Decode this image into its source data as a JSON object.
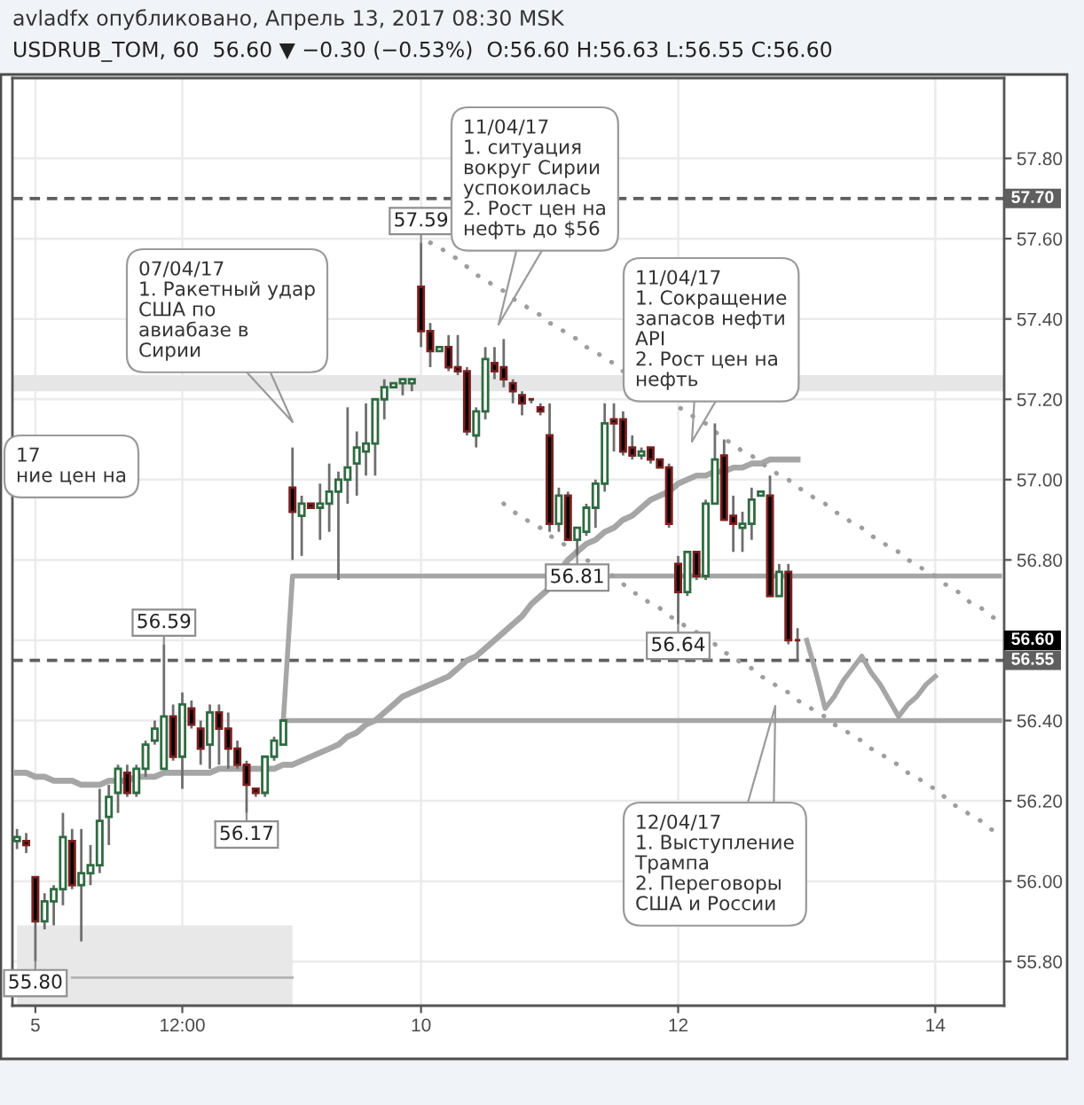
{
  "chart_data": {
    "type": "candlestick",
    "title": "avladfx опубликовано, Апрель 13, 2017 08:30 MSK",
    "subtitle": "USDRUB_TOM, 60  56.60 ▼ −0.30 (−0.53%)  O:56.60 H:56.63 L:56.55 C:56.60",
    "categories": [
      null,
      null,
      "5",
      null,
      null,
      null,
      null,
      null,
      null,
      null,
      null,
      null,
      null,
      null,
      null,
      null,
      null,
      null,
      "12:00",
      null,
      null,
      null,
      null,
      null,
      null,
      null,
      null,
      null,
      null,
      null,
      null,
      null,
      null,
      null,
      null,
      null,
      null,
      null,
      null,
      null,
      null,
      null,
      null,
      null,
      "10",
      null,
      null,
      null,
      null,
      null,
      null,
      null,
      null,
      null,
      null,
      null,
      null,
      null,
      null,
      null,
      null,
      null,
      null,
      null,
      null,
      null,
      null,
      null,
      null,
      null,
      null,
      null,
      "12",
      null,
      null,
      null,
      null,
      null,
      null,
      null,
      null,
      null,
      null,
      null,
      null,
      null,
      null,
      null,
      null,
      null,
      null,
      null,
      null,
      null,
      null,
      null,
      null,
      null,
      null,
      null,
      "14",
      null,
      null,
      null,
      null,
      null,
      null,
      null
    ],
    "ylim": [
      55.69,
      58.0
    ],
    "yticks": [
      {
        "value": 55.8,
        "label": "55.80"
      },
      {
        "value": 56.0,
        "label": "56.00"
      },
      {
        "value": 56.2,
        "label": "56.20"
      },
      {
        "value": 56.4,
        "label": "56.40"
      },
      {
        "value": 56.6,
        "label": null
      },
      {
        "value": 56.8,
        "label": "56.80"
      },
      {
        "value": 57.0,
        "label": "57.00"
      },
      {
        "value": 57.2,
        "label": "57.20"
      },
      {
        "value": 57.4,
        "label": "57.40"
      },
      {
        "value": 57.6,
        "label": "57.60"
      },
      {
        "value": 57.8,
        "label": "57.80"
      }
    ],
    "grid": true,
    "color": "#6e6e6e",
    "ohlc": [
      [
        56.1,
        56.13,
        56.08,
        56.11
      ],
      [
        56.1,
        56.12,
        56.07,
        56.09
      ],
      [
        56.01,
        56.01,
        55.8,
        55.9
      ],
      [
        55.9,
        55.97,
        55.88,
        55.95
      ],
      [
        55.95,
        55.99,
        55.89,
        55.98
      ],
      [
        55.98,
        56.17,
        55.94,
        56.11
      ],
      [
        56.1,
        56.13,
        55.98,
        55.99
      ],
      [
        55.99,
        56.13,
        55.85,
        56.02
      ],
      [
        56.02,
        56.09,
        55.99,
        56.04
      ],
      [
        56.04,
        56.23,
        56.02,
        56.15
      ],
      [
        56.16,
        56.24,
        56.09,
        56.21
      ],
      [
        56.22,
        56.29,
        56.17,
        56.28
      ],
      [
        56.27,
        56.29,
        56.21,
        56.22
      ],
      [
        56.22,
        56.29,
        56.21,
        56.28
      ],
      [
        56.28,
        56.35,
        56.26,
        56.34
      ],
      [
        56.35,
        56.4,
        56.34,
        56.38
      ],
      [
        56.28,
        56.59,
        56.28,
        56.41
      ],
      [
        56.41,
        56.44,
        56.3,
        56.31
      ],
      [
        56.31,
        56.47,
        56.23,
        56.44
      ],
      [
        56.43,
        56.45,
        56.38,
        56.39
      ],
      [
        56.38,
        56.4,
        56.29,
        56.33
      ],
      [
        56.34,
        56.44,
        56.28,
        56.42
      ],
      [
        56.42,
        56.44,
        56.29,
        56.38
      ],
      [
        56.38,
        56.42,
        56.28,
        56.33
      ],
      [
        56.33,
        56.35,
        56.28,
        56.29
      ],
      [
        56.29,
        56.3,
        56.17,
        56.24
      ],
      [
        56.23,
        56.23,
        56.21,
        56.22
      ],
      [
        56.22,
        56.31,
        56.21,
        56.31
      ],
      [
        56.31,
        56.36,
        56.3,
        56.35
      ],
      [
        56.34,
        56.4,
        56.34,
        56.4
      ],
      [
        56.98,
        57.08,
        56.8,
        56.92
      ],
      [
        56.91,
        56.96,
        56.81,
        56.94
      ],
      [
        56.94,
        56.94,
        56.93,
        56.93
      ],
      [
        56.93,
        56.99,
        56.85,
        56.94
      ],
      [
        56.94,
        57.04,
        56.87,
        56.97
      ],
      [
        56.97,
        57.02,
        56.75,
        57.0
      ],
      [
        57.0,
        57.18,
        56.94,
        57.03
      ],
      [
        57.04,
        57.12,
        56.96,
        57.08
      ],
      [
        57.07,
        57.19,
        57.01,
        57.09
      ],
      [
        57.09,
        57.2,
        57.01,
        57.2
      ],
      [
        57.2,
        57.25,
        57.15,
        57.23
      ],
      [
        57.23,
        57.24,
        57.23,
        57.24
      ],
      [
        57.24,
        57.25,
        57.21,
        57.25
      ],
      [
        57.24,
        57.25,
        57.22,
        57.25
      ],
      [
        57.48,
        57.59,
        57.33,
        57.37
      ],
      [
        57.37,
        57.39,
        57.28,
        57.32
      ],
      [
        57.32,
        57.33,
        57.32,
        57.33
      ],
      [
        57.33,
        57.36,
        57.27,
        57.28
      ],
      [
        57.28,
        57.36,
        57.26,
        57.27
      ],
      [
        57.27,
        57.28,
        57.11,
        57.12
      ],
      [
        57.11,
        57.18,
        57.08,
        57.17
      ],
      [
        57.17,
        57.33,
        57.15,
        57.3
      ],
      [
        57.29,
        57.33,
        57.25,
        57.27
      ],
      [
        57.28,
        57.35,
        57.23,
        57.25
      ],
      [
        57.24,
        57.25,
        57.19,
        57.22
      ],
      [
        57.21,
        57.22,
        57.16,
        57.19
      ],
      [
        57.2,
        57.2,
        57.19,
        57.2
      ],
      [
        57.18,
        57.19,
        57.16,
        57.17
      ],
      [
        57.11,
        57.19,
        56.87,
        56.89
      ],
      [
        56.89,
        56.98,
        56.87,
        56.96
      ],
      [
        56.96,
        56.97,
        56.85,
        56.85
      ],
      [
        56.85,
        56.88,
        56.81,
        56.88
      ],
      [
        56.87,
        56.94,
        56.86,
        56.93
      ],
      [
        56.93,
        57.0,
        56.88,
        56.99
      ],
      [
        56.99,
        57.19,
        56.97,
        57.14
      ],
      [
        57.15,
        57.19,
        57.07,
        57.14
      ],
      [
        57.15,
        57.17,
        57.06,
        57.07
      ],
      [
        57.08,
        57.11,
        57.05,
        57.06
      ],
      [
        57.06,
        57.08,
        57.05,
        57.07
      ],
      [
        57.08,
        57.08,
        57.04,
        57.05
      ],
      [
        57.05,
        57.05,
        57.03,
        57.03
      ],
      [
        57.03,
        57.04,
        56.88,
        56.89
      ],
      [
        56.79,
        56.81,
        56.64,
        56.72
      ],
      [
        56.72,
        56.82,
        56.71,
        56.82
      ],
      [
        56.82,
        56.82,
        56.75,
        56.76
      ],
      [
        56.76,
        56.95,
        56.75,
        56.94
      ],
      [
        56.94,
        57.14,
        56.94,
        57.05
      ],
      [
        57.06,
        57.1,
        56.9,
        56.9
      ],
      [
        56.91,
        56.96,
        56.82,
        56.89
      ],
      [
        56.88,
        56.92,
        56.82,
        56.89
      ],
      [
        56.89,
        56.98,
        56.85,
        56.95
      ],
      [
        56.96,
        56.97,
        56.96,
        56.97
      ],
      [
        56.96,
        57.01,
        56.71,
        56.71
      ],
      [
        56.71,
        56.79,
        56.71,
        56.77
      ],
      [
        56.77,
        56.79,
        56.59,
        56.6
      ],
      [
        56.6,
        56.63,
        56.55,
        56.6
      ],
      null,
      null,
      null,
      null,
      null,
      null,
      null,
      null,
      null,
      null,
      null,
      null,
      null,
      null,
      null,
      null,
      null,
      null,
      null,
      null,
      null,
      null
    ],
    "colors": [
      "#2e6b40",
      "#7a1f1f",
      "#7a1f1f",
      "#2e6b40",
      "#2e6b40",
      "#2e6b40",
      "#7a1f1f",
      "#2e6b40",
      "#2e6b40",
      "#2e6b40",
      "#2e6b40",
      "#2e6b40",
      "#7a1f1f",
      "#2e6b40",
      "#2e6b40",
      "#2e6b40",
      "#2e6b40",
      "#7a1f1f",
      "#2e6b40",
      "#7a1f1f",
      "#7a1f1f",
      "#2e6b40",
      "#7a1f1f",
      "#7a1f1f",
      "#7a1f1f",
      "#7a1f1f",
      "#7a1f1f",
      "#2e6b40",
      "#2e6b40",
      "#2e6b40",
      "#7a1f1f",
      "#2e6b40",
      "#7a1f1f",
      "#2e6b40",
      "#2e6b40",
      "#2e6b40",
      "#2e6b40",
      "#2e6b40",
      "#2e6b40",
      "#2e6b40",
      "#2e6b40",
      "#2e6b40",
      "#2e6b40",
      "#2e6b40",
      "#7a1f1f",
      "#7a1f1f",
      "#2e6b40",
      "#7a1f1f",
      "#7a1f1f",
      "#7a1f1f",
      "#2e6b40",
      "#2e6b40",
      "#7a1f1f",
      "#7a1f1f",
      "#7a1f1f",
      "#7a1f1f",
      "#7a1f1f",
      "#7a1f1f",
      "#7a1f1f",
      "#2e6b40",
      "#7a1f1f",
      "#2e6b40",
      "#2e6b40",
      "#2e6b40",
      "#2e6b40",
      "#7a1f1f",
      "#7a1f1f",
      "#7a1f1f",
      "#2e6b40",
      "#7a1f1f",
      "#7a1f1f",
      "#7a1f1f",
      "#7a1f1f",
      "#2e6b40",
      "#7a1f1f",
      "#2e6b40",
      "#2e6b40",
      "#7a1f1f",
      "#7a1f1f",
      "#2e6b40",
      "#2e6b40",
      "#2e6b40",
      "#7a1f1f",
      "#2e6b40",
      "#7a1f1f",
      "#7a1f1f",
      null,
      null,
      null,
      null,
      null,
      null,
      null,
      null,
      null,
      null,
      null,
      null,
      null,
      null,
      null,
      null,
      null,
      null,
      null,
      null,
      null,
      null
    ],
    "value_labels": [
      null,
      null,
      "55.80",
      null,
      null,
      null,
      null,
      null,
      null,
      null,
      null,
      null,
      null,
      null,
      null,
      null,
      "56.59",
      null,
      null,
      null,
      null,
      null,
      null,
      null,
      null,
      "56.17",
      null,
      null,
      null,
      null,
      null,
      null,
      null,
      null,
      null,
      null,
      null,
      null,
      null,
      null,
      null,
      null,
      null,
      null,
      "57.59",
      null,
      null,
      null,
      null,
      null,
      null,
      null,
      null,
      null,
      null,
      null,
      null,
      null,
      null,
      null,
      null,
      "56.81",
      null,
      null,
      null,
      null,
      null,
      null,
      null,
      null,
      null,
      null,
      "56.64",
      null,
      null,
      null,
      null,
      null,
      null,
      null,
      null,
      null,
      null,
      null,
      null,
      null,
      null,
      null,
      null,
      null,
      null,
      null,
      null,
      null,
      null,
      null,
      null,
      null,
      null,
      null,
      null,
      null,
      null,
      null,
      null,
      null,
      null,
      null
    ],
    "series": [
      {
        "type": "line",
        "color": "#a6a6a6",
        "values": [
          56.27,
          56.27,
          56.26,
          56.26,
          56.25,
          56.25,
          56.25,
          56.24,
          56.24,
          56.24,
          56.25,
          56.25,
          56.25,
          56.26,
          56.26,
          56.26,
          56.27,
          56.27,
          56.27,
          56.27,
          56.27,
          56.27,
          56.28,
          56.28,
          56.28,
          56.28,
          56.28,
          56.28,
          56.28,
          56.29,
          56.29,
          56.3,
          56.31,
          56.32,
          56.33,
          56.34,
          56.36,
          56.37,
          56.39,
          56.4,
          56.42,
          56.44,
          56.46,
          56.47,
          56.48,
          56.49,
          56.5,
          56.51,
          56.53,
          56.55,
          56.56,
          56.58,
          56.6,
          56.62,
          56.64,
          56.66,
          56.69,
          56.71,
          56.73,
          56.77,
          56.8,
          56.82,
          56.84,
          56.85,
          56.87,
          56.88,
          56.9,
          56.91,
          56.93,
          56.95,
          56.96,
          56.97,
          56.99,
          57.0,
          57.01,
          57.01,
          57.02,
          57.02,
          57.03,
          57.03,
          57.04,
          57.04,
          57.05,
          57.05,
          57.05,
          57.05,
          null,
          null,
          null,
          null,
          null,
          null,
          null,
          null,
          null,
          null,
          null,
          null,
          null,
          null,
          null,
          null,
          null,
          null,
          null,
          null,
          null,
          null
        ]
      },
      {
        "type": "line",
        "color": "#a6a6a6",
        "values": [
          null,
          null,
          null,
          null,
          null,
          null,
          null,
          null,
          null,
          null,
          null,
          null,
          null,
          null,
          null,
          null,
          null,
          null,
          null,
          null,
          null,
          null,
          null,
          null,
          null,
          null,
          null,
          null,
          null,
          56.4,
          56.76,
          56.76,
          56.76,
          56.76,
          56.76,
          56.76,
          56.76,
          56.76,
          56.76,
          56.76,
          56.76,
          56.76,
          56.76,
          56.76,
          56.76,
          56.76,
          56.76,
          56.76,
          56.76,
          56.76,
          56.76,
          56.76,
          56.76,
          56.76,
          56.76,
          56.76,
          56.76,
          56.76,
          56.76,
          56.76,
          56.76,
          56.76,
          56.76,
          56.76,
          56.76,
          56.76,
          56.76,
          56.76,
          56.76,
          56.76,
          56.76,
          56.76,
          56.76,
          56.76,
          56.76,
          56.76,
          56.76,
          56.76,
          56.76,
          56.76,
          56.76,
          56.76,
          56.76,
          56.76,
          56.76,
          56.76,
          56.76,
          56.76,
          56.76,
          56.76,
          56.76,
          56.76,
          56.76,
          56.76,
          56.76,
          56.76,
          56.76,
          56.76,
          56.76,
          56.76,
          56.76,
          56.76,
          56.76,
          56.76,
          56.76,
          56.76,
          56.76,
          56.76
        ]
      },
      {
        "type": "line",
        "color": "#a6a6a6",
        "values": [
          null,
          null,
          null,
          null,
          null,
          null,
          null,
          null,
          null,
          null,
          null,
          null,
          null,
          null,
          null,
          null,
          null,
          null,
          null,
          null,
          null,
          null,
          null,
          null,
          null,
          null,
          null,
          null,
          null,
          56.4,
          56.4,
          56.4,
          56.4,
          56.4,
          56.4,
          56.4,
          56.4,
          56.4,
          56.4,
          56.4,
          56.4,
          56.4,
          56.4,
          56.4,
          56.4,
          56.4,
          56.4,
          56.4,
          56.4,
          56.4,
          56.4,
          56.4,
          56.4,
          56.4,
          56.4,
          56.4,
          56.4,
          56.4,
          56.4,
          56.4,
          56.4,
          56.4,
          56.4,
          56.4,
          56.4,
          56.4,
          56.4,
          56.4,
          56.4,
          56.4,
          56.4,
          56.4,
          56.4,
          56.4,
          56.4,
          56.4,
          56.4,
          56.4,
          56.4,
          56.4,
          56.4,
          56.4,
          56.4,
          56.4,
          56.4,
          56.4,
          56.4,
          56.4,
          56.4,
          56.4,
          56.4,
          56.4,
          56.4,
          56.4,
          56.4,
          56.4,
          56.4,
          56.4,
          56.4,
          56.4,
          56.4,
          56.4,
          56.4,
          56.4,
          56.4,
          56.4,
          56.4,
          56.4
        ]
      },
      {
        "type": "line",
        "line_style": "dotted",
        "color": "#9e9e9e",
        "values": [
          null,
          null,
          null,
          null,
          null,
          null,
          null,
          null,
          null,
          null,
          null,
          null,
          null,
          null,
          null,
          null,
          null,
          null,
          null,
          null,
          null,
          null,
          null,
          null,
          null,
          null,
          null,
          null,
          null,
          null,
          null,
          null,
          null,
          null,
          null,
          null,
          null,
          null,
          null,
          null,
          null,
          null,
          null,
          null,
          null,
          57.59,
          57.58,
          57.56,
          57.55,
          57.53,
          57.51,
          57.5,
          57.48,
          57.47,
          57.45,
          57.44,
          57.42,
          57.41,
          57.39,
          57.38,
          57.36,
          57.35,
          57.33,
          57.32,
          57.3,
          57.29,
          57.27,
          null,
          null,
          null,
          null,
          57.2,
          57.18,
          57.17,
          57.15,
          57.14,
          57.12,
          57.1,
          57.09,
          57.07,
          57.06,
          57.04,
          57.03,
          57.01,
          57.0,
          56.98,
          56.97,
          56.95,
          56.94,
          56.92,
          56.91,
          56.89,
          56.88,
          56.86,
          56.85,
          56.83,
          56.82,
          56.8,
          56.79,
          56.77,
          56.76,
          56.74,
          56.73,
          56.71,
          56.69,
          56.68,
          56.66,
          56.65
        ]
      },
      {
        "type": "line",
        "line_style": "dotted",
        "color": "#9e9e9e",
        "values": [
          null,
          null,
          null,
          null,
          null,
          null,
          null,
          null,
          null,
          null,
          null,
          null,
          null,
          null,
          null,
          null,
          null,
          null,
          null,
          null,
          null,
          null,
          null,
          null,
          null,
          null,
          null,
          null,
          null,
          null,
          null,
          null,
          null,
          null,
          null,
          null,
          null,
          null,
          null,
          null,
          null,
          null,
          null,
          null,
          null,
          null,
          null,
          null,
          null,
          null,
          null,
          null,
          null,
          56.94,
          56.92,
          56.91,
          56.89,
          56.88,
          56.86,
          56.85,
          56.83,
          56.82,
          56.8,
          56.79,
          56.77,
          56.76,
          56.74,
          56.72,
          56.71,
          56.69,
          56.68,
          56.66,
          56.65,
          56.63,
          56.62,
          null,
          56.59,
          56.57,
          56.56,
          56.54,
          56.53,
          56.51,
          56.5,
          56.48,
          56.47,
          56.45,
          56.44,
          56.42,
          56.41,
          56.39,
          56.38,
          56.36,
          56.35,
          56.33,
          56.32,
          56.3,
          56.29,
          56.27,
          56.26,
          56.24,
          56.23,
          56.21,
          56.19,
          56.18,
          56.16,
          56.15,
          56.13,
          56.12
        ]
      },
      {
        "type": "line",
        "color": "#a6a6a6",
        "values": [
          null,
          null,
          null,
          null,
          null,
          null,
          null,
          null,
          null,
          null,
          null,
          null,
          null,
          null,
          null,
          null,
          null,
          null,
          null,
          null,
          null,
          null,
          null,
          null,
          null,
          null,
          null,
          null,
          null,
          null,
          null,
          null,
          null,
          null,
          null,
          null,
          null,
          null,
          null,
          null,
          null,
          null,
          null,
          null,
          null,
          null,
          null,
          null,
          null,
          null,
          null,
          null,
          null,
          null,
          null,
          null,
          null,
          null,
          null,
          null,
          null,
          null,
          null,
          null,
          null,
          null,
          null,
          null,
          null,
          null,
          null,
          null,
          null,
          null,
          null,
          null,
          null,
          null,
          null,
          null,
          null,
          null,
          null,
          null,
          null,
          null,
          56.6,
          56.52,
          56.43,
          56.46,
          56.5,
          56.53,
          56.56,
          56.52,
          56.49,
          56.45,
          56.41,
          56.44,
          56.46,
          56.49,
          56.51,
          null,
          null,
          null,
          null,
          null,
          null,
          null
        ]
      },
      {
        "type": "area",
        "color": "#e8e8e8",
        "values": [
          55.89,
          55.89,
          55.89,
          55.89,
          55.89,
          55.89,
          55.89,
          55.89,
          55.89,
          55.89,
          55.89,
          55.89,
          55.89,
          55.89,
          55.89,
          55.89,
          55.89,
          55.89,
          55.89,
          55.89,
          55.89,
          55.89,
          55.89,
          55.89,
          55.89,
          55.89,
          55.89,
          55.89,
          55.89,
          55.89,
          55.89,
          null,
          null,
          null,
          null,
          null,
          null,
          null,
          null,
          null,
          null,
          null,
          null,
          null,
          null,
          null,
          null,
          null,
          null,
          null,
          null,
          null,
          null,
          null,
          null,
          null,
          null,
          null,
          null,
          null,
          null,
          null,
          null,
          null,
          null,
          null,
          null,
          null,
          null,
          null,
          null,
          null,
          null,
          null,
          null,
          null,
          null,
          null,
          null,
          null,
          null,
          null,
          null,
          null,
          null,
          null,
          null,
          null,
          null,
          null,
          null,
          null,
          null,
          null,
          null,
          null,
          null,
          null,
          null,
          null,
          null,
          null,
          null,
          null,
          null,
          null,
          null,
          null
        ]
      },
      {
        "type": "line",
        "color": "#b3b3b3",
        "values": [
          null,
          null,
          null,
          null,
          null,
          null,
          55.76,
          55.76,
          55.76,
          55.76,
          55.76,
          55.76,
          55.76,
          55.76,
          55.76,
          55.76,
          55.76,
          55.76,
          55.76,
          55.76,
          55.76,
          55.76,
          55.76,
          55.76,
          55.76,
          55.76,
          55.76,
          55.76,
          55.76,
          55.76,
          55.76,
          null,
          null,
          null,
          null,
          null,
          null,
          null,
          null,
          null,
          null,
          null,
          null,
          null,
          null,
          null,
          null,
          null,
          null,
          null,
          null,
          null,
          null,
          null,
          null,
          null,
          null,
          null,
          null,
          null,
          null,
          null,
          null,
          null,
          null,
          null,
          null,
          null,
          null,
          null,
          null,
          null,
          null,
          null,
          null,
          null,
          null,
          null,
          null,
          null,
          null,
          null,
          null,
          null,
          null,
          null,
          null,
          null,
          null,
          null,
          null,
          null,
          null,
          null,
          null,
          null,
          null,
          null,
          null,
          null,
          null,
          null,
          null,
          null,
          null,
          null,
          null,
          null
        ]
      }
    ],
    "ref_lines": [
      {
        "axis": "y",
        "value": 57.7,
        "label": "57.70",
        "color": "#5f5f5f",
        "line_style": "dashed"
      },
      {
        "axis": "y",
        "value": 56.55,
        "label": "56.55",
        "color": "#5f5f5f",
        "line_style": "dashed"
      }
    ],
    "bands": [
      {
        "axis": "y",
        "from": 57.22,
        "to": 57.26,
        "color": "#e6e6e6"
      }
    ],
    "annotations": [
      "17\nние цен на",
      "07/04/17\n1. Ракетный удар\nСША по\nавиабазе в\nСирии",
      "11/04/17\n1. ситуация\nвокруг Сирии\nуспокоилась\n2. Рост цен на\nнефть до $56",
      "11/04/17\n1. Сокращение\nзапасов нефти\nAPI\n2. Рост цен на\nнефть",
      "12/04/17\n1. Выступление\nТрампа\n2. Переговоры\nСША и России",
      "56.60"
    ]
  }
}
